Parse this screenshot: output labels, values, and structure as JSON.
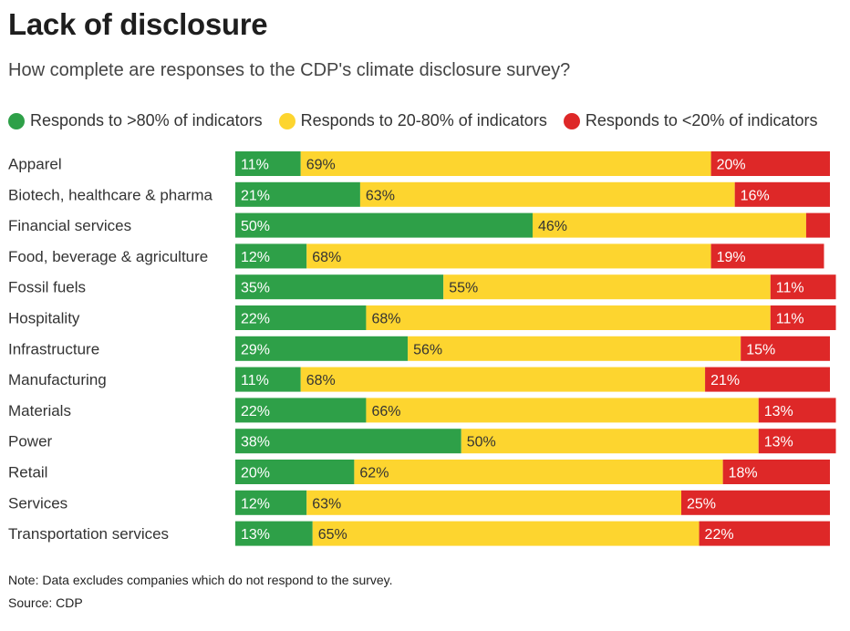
{
  "title": "Lack of disclosure",
  "subtitle": "How complete are responses to the CDP's climate disclosure survey?",
  "legend": [
    {
      "label": "Responds to >80% of indicators",
      "color": "#2ea048"
    },
    {
      "label": "Responds to 20-80% of indicators",
      "color": "#fdd52f"
    },
    {
      "label": "Responds to <20% of indicators",
      "color": "#de2828"
    }
  ],
  "chart_data": {
    "type": "bar",
    "orientation": "horizontal",
    "stacked": true,
    "normalized_percent": true,
    "xlim": [
      0,
      100
    ],
    "categories": [
      "Apparel",
      "Biotech, healthcare & pharma",
      "Financial services",
      "Food, beverage & agriculture",
      "Fossil fuels",
      "Hospitality",
      "Infrastructure",
      "Manufacturing",
      "Materials",
      "Power",
      "Retail",
      "Services",
      "Transportation services"
    ],
    "series": [
      {
        "name": "Responds to >80% of indicators",
        "color": "#2ea048",
        "values": [
          11,
          21,
          50,
          12,
          35,
          22,
          29,
          11,
          22,
          38,
          20,
          12,
          13
        ],
        "labels": [
          "11%",
          "21%",
          "50%",
          "12%",
          "35%",
          "22%",
          "29%",
          "11%",
          "22%",
          "38%",
          "20%",
          "12%",
          "13%"
        ]
      },
      {
        "name": "Responds to 20-80% of indicators",
        "color": "#fdd52f",
        "values": [
          69,
          63,
          46,
          68,
          55,
          68,
          56,
          68,
          66,
          50,
          62,
          63,
          65
        ],
        "labels": [
          "69%",
          "63%",
          "46%",
          "68%",
          "55%",
          "68%",
          "56%",
          "68%",
          "66%",
          "50%",
          "62%",
          "63%",
          "65%"
        ]
      },
      {
        "name": "Responds to <20% of indicators",
        "color": "#de2828",
        "values": [
          20,
          16,
          4,
          19,
          11,
          11,
          15,
          21,
          13,
          13,
          18,
          25,
          22
        ],
        "labels": [
          "20%",
          "16%",
          "",
          "19%",
          "11%",
          "11%",
          "15%",
          "21%",
          "13%",
          "13%",
          "18%",
          "25%",
          "22%"
        ]
      }
    ],
    "label_colors": [
      "#ffffff",
      "#333333",
      "#ffffff"
    ]
  },
  "note": "Note: Data excludes companies which do not respond to the survey.",
  "source": "Source: CDP"
}
